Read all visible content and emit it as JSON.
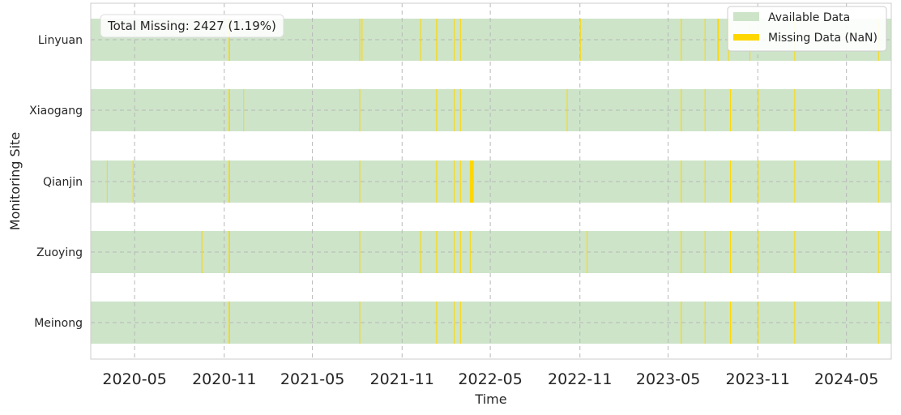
{
  "chart_data": {
    "type": "timeline",
    "xlabel": "Time",
    "ylabel": "Monitoring Site",
    "xlim": [
      "2020-02-01",
      "2024-08-01"
    ],
    "x_ticks": [
      "2020-05",
      "2020-11",
      "2021-05",
      "2021-11",
      "2022-05",
      "2022-11",
      "2023-05",
      "2023-11",
      "2024-05"
    ],
    "grid": true,
    "annotation": "Total Missing: 2427 (1.19%)",
    "legend": {
      "placement": "top-right",
      "entries": [
        {
          "label": "Available Data",
          "color": "#cde4c9"
        },
        {
          "label": "Missing Data (NaN)",
          "color": "#ffd700"
        }
      ]
    },
    "sites": [
      {
        "name": "Linyuan",
        "missing": [
          {
            "start": "2020-11-10",
            "end": "2020-11-13"
          },
          {
            "start": "2021-08-05",
            "end": "2021-08-07"
          },
          {
            "start": "2021-08-10",
            "end": "2021-08-11"
          },
          {
            "start": "2021-12-08",
            "end": "2021-12-09"
          },
          {
            "start": "2022-01-10",
            "end": "2022-01-12"
          },
          {
            "start": "2022-02-15",
            "end": "2022-02-16"
          },
          {
            "start": "2022-02-28",
            "end": "2022-03-01"
          },
          {
            "start": "2022-11-01",
            "end": "2022-11-02"
          },
          {
            "start": "2023-05-27",
            "end": "2023-05-29"
          },
          {
            "start": "2023-07-15",
            "end": "2023-07-16"
          },
          {
            "start": "2023-08-10",
            "end": "2023-08-13"
          },
          {
            "start": "2023-09-01",
            "end": "2023-09-02"
          },
          {
            "start": "2023-10-15",
            "end": "2023-10-16"
          },
          {
            "start": "2024-01-15",
            "end": "2024-01-16"
          },
          {
            "start": "2024-07-05",
            "end": "2024-07-06"
          }
        ]
      },
      {
        "name": "Xiaogang",
        "missing": [
          {
            "start": "2020-11-10",
            "end": "2020-11-13"
          },
          {
            "start": "2020-12-10",
            "end": "2020-12-11"
          },
          {
            "start": "2021-08-05",
            "end": "2021-08-07"
          },
          {
            "start": "2022-01-10",
            "end": "2022-01-11"
          },
          {
            "start": "2022-02-15",
            "end": "2022-02-16"
          },
          {
            "start": "2022-02-28",
            "end": "2022-03-01"
          },
          {
            "start": "2022-10-05",
            "end": "2022-10-06"
          },
          {
            "start": "2023-05-27",
            "end": "2023-05-29"
          },
          {
            "start": "2023-07-15",
            "end": "2023-07-16"
          },
          {
            "start": "2023-09-05",
            "end": "2023-09-06"
          },
          {
            "start": "2023-11-01",
            "end": "2023-11-02"
          },
          {
            "start": "2024-01-15",
            "end": "2024-01-16"
          },
          {
            "start": "2024-07-05",
            "end": "2024-07-06"
          }
        ]
      },
      {
        "name": "Qianjin",
        "missing": [
          {
            "start": "2020-03-05",
            "end": "2020-03-06"
          },
          {
            "start": "2020-04-27",
            "end": "2020-04-28"
          },
          {
            "start": "2020-11-10",
            "end": "2020-11-13"
          },
          {
            "start": "2021-08-05",
            "end": "2021-08-07"
          },
          {
            "start": "2022-01-10",
            "end": "2022-01-11"
          },
          {
            "start": "2022-02-15",
            "end": "2022-02-16"
          },
          {
            "start": "2022-02-28",
            "end": "2022-03-01"
          },
          {
            "start": "2022-03-20",
            "end": "2022-03-28"
          },
          {
            "start": "2023-05-27",
            "end": "2023-05-29"
          },
          {
            "start": "2023-07-15",
            "end": "2023-07-16"
          },
          {
            "start": "2023-09-05",
            "end": "2023-09-06"
          },
          {
            "start": "2023-11-01",
            "end": "2023-11-02"
          },
          {
            "start": "2024-01-15",
            "end": "2024-01-16"
          },
          {
            "start": "2024-07-05",
            "end": "2024-07-06"
          }
        ]
      },
      {
        "name": "Zuoying",
        "missing": [
          {
            "start": "2020-09-15",
            "end": "2020-09-17"
          },
          {
            "start": "2020-11-10",
            "end": "2020-11-13"
          },
          {
            "start": "2021-08-05",
            "end": "2021-08-07"
          },
          {
            "start": "2021-12-08",
            "end": "2021-12-09"
          },
          {
            "start": "2022-01-10",
            "end": "2022-01-11"
          },
          {
            "start": "2022-02-15",
            "end": "2022-02-16"
          },
          {
            "start": "2022-02-28",
            "end": "2022-03-01"
          },
          {
            "start": "2022-03-20",
            "end": "2022-03-21"
          },
          {
            "start": "2022-11-15",
            "end": "2022-11-16"
          },
          {
            "start": "2023-05-27",
            "end": "2023-05-29"
          },
          {
            "start": "2023-07-15",
            "end": "2023-07-16"
          },
          {
            "start": "2023-09-05",
            "end": "2023-09-06"
          },
          {
            "start": "2023-11-01",
            "end": "2023-11-02"
          },
          {
            "start": "2024-01-15",
            "end": "2024-01-16"
          },
          {
            "start": "2024-07-05",
            "end": "2024-07-06"
          }
        ]
      },
      {
        "name": "Meinong",
        "missing": [
          {
            "start": "2020-11-10",
            "end": "2020-11-13"
          },
          {
            "start": "2021-08-05",
            "end": "2021-08-07"
          },
          {
            "start": "2022-01-10",
            "end": "2022-01-11"
          },
          {
            "start": "2022-02-15",
            "end": "2022-02-16"
          },
          {
            "start": "2022-02-28",
            "end": "2022-03-01"
          },
          {
            "start": "2023-05-27",
            "end": "2023-05-29"
          },
          {
            "start": "2023-07-15",
            "end": "2023-07-16"
          },
          {
            "start": "2023-09-05",
            "end": "2023-09-07"
          },
          {
            "start": "2023-11-01",
            "end": "2023-11-02"
          },
          {
            "start": "2024-01-15",
            "end": "2024-01-16"
          },
          {
            "start": "2024-07-05",
            "end": "2024-07-06"
          }
        ]
      }
    ]
  }
}
